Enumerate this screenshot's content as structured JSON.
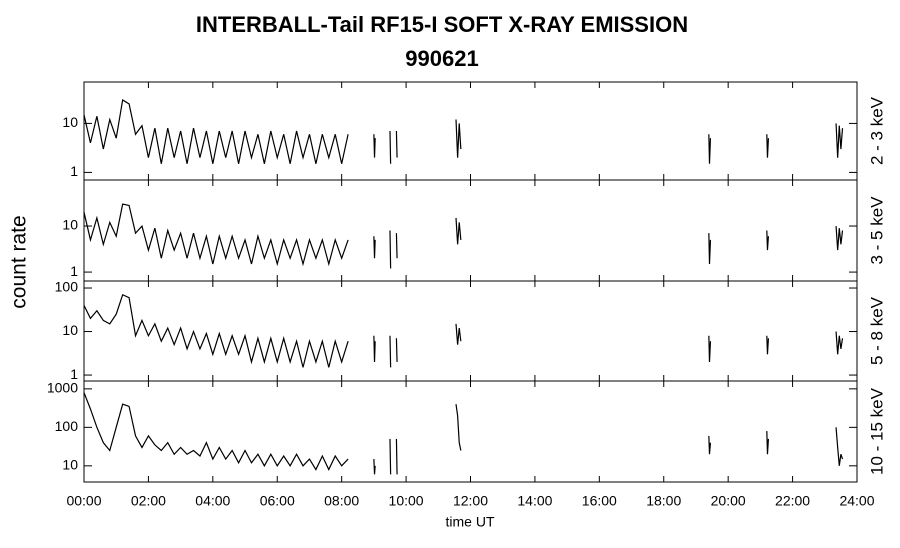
{
  "chart_data": {
    "type": "line",
    "title": "INTERBALL-Tail RF15-I SOFT X-RAY EMISSION",
    "subtitle": "990621",
    "y_label": "count rate",
    "x_label": "time UT",
    "log_y": true,
    "xlim": [
      0,
      24
    ],
    "xticks": [
      {
        "value": 0,
        "label": "00:00"
      },
      {
        "value": 2,
        "label": "02:00"
      },
      {
        "value": 4,
        "label": "04:00"
      },
      {
        "value": 6,
        "label": "06:00"
      },
      {
        "value": 8,
        "label": "08:00"
      },
      {
        "value": 10,
        "label": "10:00"
      },
      {
        "value": 12,
        "label": "12:00"
      },
      {
        "value": 14,
        "label": "14:00"
      },
      {
        "value": 16,
        "label": "16:00"
      },
      {
        "value": 18,
        "label": "18:00"
      },
      {
        "value": 20,
        "label": "20:00"
      },
      {
        "value": 22,
        "label": "22:00"
      },
      {
        "value": 24,
        "label": "24:00"
      }
    ],
    "x": [
      0,
      0.2,
      0.4,
      0.6,
      0.8,
      1,
      1.2,
      1.4,
      1.6,
      1.8,
      2,
      2.2,
      2.4,
      2.6,
      2.8,
      3,
      3.2,
      3.4,
      3.6,
      3.8,
      4,
      4.2,
      4.4,
      4.6,
      4.8,
      5,
      5.2,
      5.4,
      5.6,
      5.8,
      6,
      6.2,
      6.4,
      6.6,
      6.8,
      7,
      7.2,
      7.4,
      7.6,
      7.8,
      8,
      8.2,
      8.6,
      9,
      9.02,
      9.04,
      9.2,
      9.5,
      9.52,
      9.6,
      9.7,
      9.72,
      10.5,
      11.55,
      11.6,
      11.65,
      11.7,
      15,
      19.4,
      19.42,
      19.45,
      20,
      21.2,
      21.22,
      21.25,
      22,
      23.35,
      23.4,
      23.45,
      23.5,
      23.55
    ],
    "series": [
      {
        "name": "2 - 3 keV",
        "color": "#000000",
        "ylim": [
          0.7,
          70
        ],
        "yticks": [
          1,
          10
        ],
        "values": [
          15,
          4,
          14,
          3,
          12,
          5,
          30,
          25,
          6,
          9,
          2,
          8,
          1.5,
          8,
          2,
          7,
          1.5,
          8,
          2,
          7,
          1.5,
          7,
          2,
          7,
          1.5,
          7,
          2,
          6,
          1.5,
          7,
          2,
          6,
          1.5,
          7,
          2,
          6,
          1.5,
          6,
          2,
          6,
          1.5,
          6,
          null,
          6,
          2,
          5,
          null,
          7,
          1.5,
          null,
          7,
          2,
          null,
          12,
          2,
          10,
          3,
          null,
          6,
          1.5,
          5,
          null,
          6,
          2,
          5,
          null,
          10,
          2,
          9,
          3,
          8
        ]
      },
      {
        "name": "3 - 5 keV",
        "color": "#000000",
        "ylim": [
          0.64,
          100
        ],
        "yticks": [
          1,
          10
        ],
        "values": [
          20,
          5,
          15,
          4,
          12,
          6,
          30,
          28,
          7,
          10,
          3,
          9,
          2,
          8,
          3,
          7,
          2,
          7,
          2,
          6,
          1.5,
          6,
          2,
          6,
          2,
          5,
          1.5,
          6,
          2,
          5,
          1.5,
          5,
          2,
          5,
          1.5,
          5,
          2,
          5,
          1.5,
          5,
          2,
          5,
          null,
          6,
          2,
          5,
          null,
          8,
          1.2,
          null,
          7,
          2,
          null,
          15,
          4,
          12,
          5,
          null,
          7,
          1.5,
          5,
          null,
          8,
          3,
          6,
          null,
          10,
          3,
          9,
          4,
          8
        ]
      },
      {
        "name": "5 - 8 keV",
        "color": "#000000",
        "ylim": [
          0.73,
          145
        ],
        "yticks": [
          1,
          10,
          100
        ],
        "values": [
          40,
          20,
          30,
          18,
          15,
          25,
          70,
          60,
          8,
          18,
          8,
          15,
          6,
          12,
          5,
          12,
          4,
          10,
          4,
          9,
          3,
          9,
          3,
          8,
          3,
          8,
          2,
          7,
          2,
          7,
          2,
          7,
          2,
          6,
          1.5,
          6,
          2,
          6,
          1.5,
          6,
          2,
          6,
          null,
          8,
          2,
          6,
          null,
          8,
          1.5,
          null,
          7,
          2,
          null,
          15,
          5,
          12,
          6,
          null,
          8,
          2,
          6,
          null,
          8,
          3,
          7,
          null,
          10,
          3,
          8,
          4,
          7
        ]
      },
      {
        "name": "10 - 15 keV",
        "color": "#000000",
        "ylim": [
          3.8,
          1600
        ],
        "yticks": [
          10,
          100,
          1000
        ],
        "values": [
          800,
          300,
          100,
          40,
          25,
          100,
          400,
          350,
          60,
          30,
          60,
          35,
          25,
          40,
          20,
          30,
          20,
          25,
          18,
          40,
          15,
          30,
          15,
          25,
          12,
          25,
          12,
          20,
          10,
          20,
          10,
          18,
          10,
          20,
          10,
          15,
          8,
          18,
          8,
          18,
          10,
          15,
          null,
          15,
          6,
          10,
          null,
          50,
          6,
          null,
          50,
          6,
          null,
          400,
          200,
          40,
          25,
          null,
          60,
          20,
          40,
          null,
          80,
          20,
          50,
          null,
          100,
          30,
          10,
          20,
          15
        ]
      }
    ]
  }
}
